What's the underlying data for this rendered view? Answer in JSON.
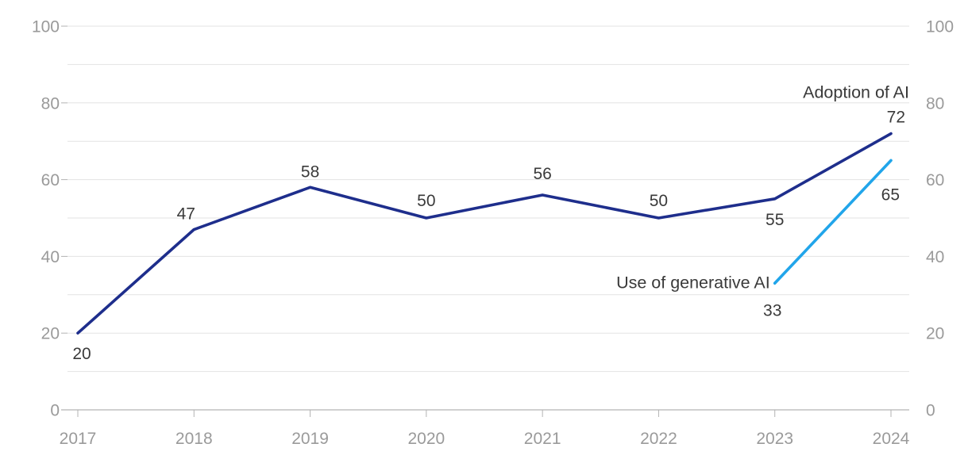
{
  "page": {
    "background": "#ffffff"
  },
  "chart_data": {
    "type": "line",
    "title": "",
    "x": [
      2017,
      2018,
      2019,
      2020,
      2021,
      2022,
      2023,
      2024
    ],
    "x_tick_labels": [
      "2017",
      "2018",
      "2019",
      "2020",
      "2021",
      "2022",
      "2023",
      "2024"
    ],
    "ylim": [
      0,
      100
    ],
    "y_ticks": [
      0,
      20,
      40,
      60,
      80,
      100
    ],
    "gridline_step": 10,
    "grid_on": true,
    "dual_y_axis": true,
    "legend_position": "inline-labels",
    "colors": {
      "grid": "#e3e3e3",
      "axis": "#b3b3b3",
      "axis_text": "#9a9a9a",
      "label_text": "#3a3a3a"
    },
    "series": [
      {
        "name": "Adoption of AI",
        "color": "#1e2e8c",
        "values": [
          20,
          47,
          58,
          50,
          56,
          50,
          55,
          72
        ],
        "value_labels": [
          {
            "year": 2017,
            "text": "20",
            "dx": 5,
            "dy": 33,
            "anchor": "middle"
          },
          {
            "year": 2018,
            "text": "47",
            "dx": -10,
            "dy": -13,
            "anchor": "middle"
          },
          {
            "year": 2019,
            "text": "58",
            "dx": 0,
            "dy": -13,
            "anchor": "middle"
          },
          {
            "year": 2020,
            "text": "50",
            "dx": 0,
            "dy": -15,
            "anchor": "middle"
          },
          {
            "year": 2021,
            "text": "56",
            "dx": 0,
            "dy": -20,
            "anchor": "middle"
          },
          {
            "year": 2022,
            "text": "50",
            "dx": 0,
            "dy": -15,
            "anchor": "middle"
          },
          {
            "year": 2023,
            "text": "55",
            "dx": 0,
            "dy": 33,
            "anchor": "middle"
          },
          {
            "year": 2024,
            "text": "72",
            "dx": 18,
            "dy": -14,
            "anchor": "end"
          }
        ],
        "series_label": {
          "text": "Adoption of AI",
          "year": 2024,
          "value": 72,
          "dx": 23,
          "dy": -45,
          "anchor": "end"
        }
      },
      {
        "name": "Use of generative AI",
        "color": "#21a5ea",
        "values": [
          null,
          null,
          null,
          null,
          null,
          null,
          33,
          65
        ],
        "value_labels": [
          {
            "year": 2023,
            "text": "33",
            "dx": -3,
            "dy": 41,
            "anchor": "middle"
          },
          {
            "year": 2024,
            "text": "65",
            "dx": 11,
            "dy": 50,
            "anchor": "end"
          }
        ],
        "series_label": {
          "text": "Use of generative AI",
          "year": 2023,
          "value": 33,
          "dx": -6,
          "dy": 6,
          "anchor": "end"
        }
      }
    ]
  }
}
